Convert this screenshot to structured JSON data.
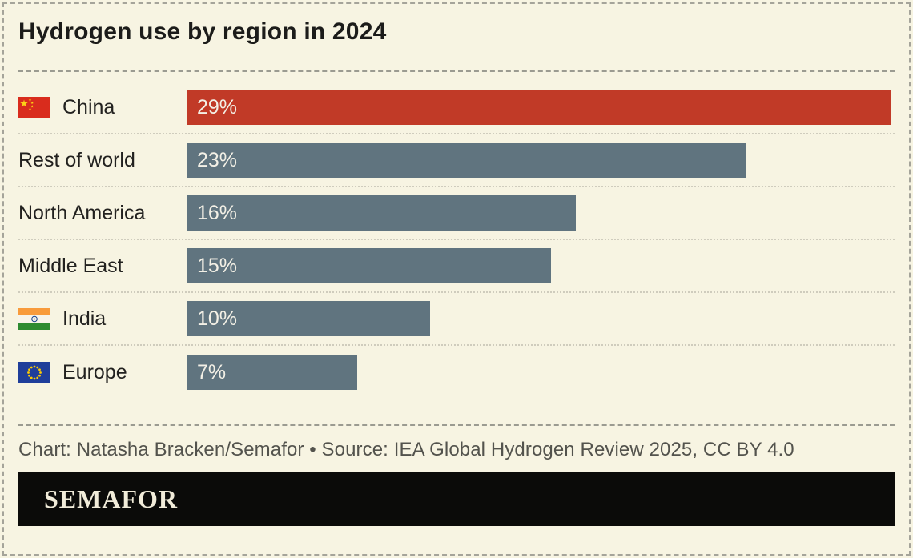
{
  "title": "Hydrogen use by region in 2024",
  "chart_data": {
    "type": "bar",
    "orientation": "horizontal",
    "title": "Hydrogen use by region in 2024",
    "categories": [
      "China",
      "Rest of world",
      "North America",
      "Middle East",
      "India",
      "Europe"
    ],
    "values": [
      29,
      23,
      16,
      15,
      10,
      7
    ],
    "value_labels": [
      "29%",
      "23%",
      "16%",
      "15%",
      "10%",
      "7%"
    ],
    "unit": "%",
    "xlim": [
      0,
      29
    ],
    "grid": false,
    "legend": "none",
    "value_label_position": "inside-left"
  },
  "rows": [
    {
      "label": "China",
      "value": 29,
      "value_label": "29%",
      "flag": "china-flag",
      "bar_color": "#c13a27"
    },
    {
      "label": "Rest of world",
      "value": 23,
      "value_label": "23%",
      "flag": null,
      "bar_color": "#60747f"
    },
    {
      "label": "North America",
      "value": 16,
      "value_label": "16%",
      "flag": null,
      "bar_color": "#60747f"
    },
    {
      "label": "Middle East",
      "value": 15,
      "value_label": "15%",
      "flag": null,
      "bar_color": "#60747f"
    },
    {
      "label": "India",
      "value": 10,
      "value_label": "10%",
      "flag": "india-flag",
      "bar_color": "#60747f"
    },
    {
      "label": "Europe",
      "value": 7,
      "value_label": "7%",
      "flag": "eu-flag",
      "bar_color": "#60747f"
    }
  ],
  "footer": {
    "credit": "Chart: Natasha Bracken/Semafor • Source: IEA Global Hydrogen Review 2025, CC BY 4.0",
    "logo_text": "SEMAFOR"
  },
  "colors": {
    "background": "#f7f4e2",
    "highlight_bar": "#c13a27",
    "default_bar": "#60747f",
    "title_text": "#1c1c1a",
    "bar_value_text": "#f3f0e6",
    "credit_text": "#53534d",
    "logo_bar_background": "#0b0b09",
    "logo_text": "#f1ecd9",
    "dashed_rule": "#9b9b91",
    "row_separator": "#cfccbd"
  }
}
